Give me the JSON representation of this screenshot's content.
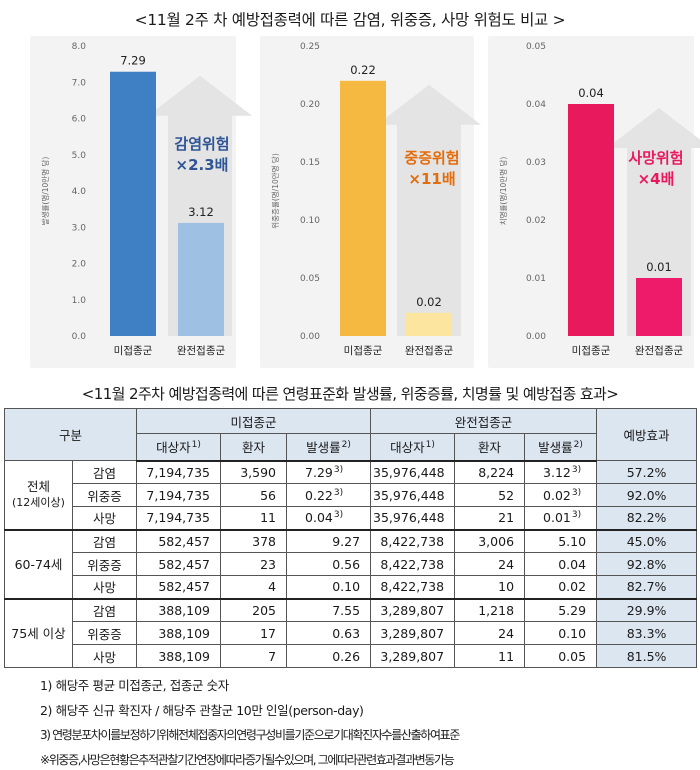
{
  "titles": {
    "chart_title": "<11월 2주 차 예방접종력에 따른 감염, 위중증, 사망 위험도 비교 >",
    "table_title": "<11월 2주차 예방접종력에 따른 연령표준화 발생률, 위중증률, 치명률 및 예방접종 효과>"
  },
  "chart_data": [
    {
      "type": "bar",
      "ylabel": "발생률(명/10만명 당)",
      "categories": [
        "미접종군",
        "완전접종군"
      ],
      "values": [
        7.29,
        3.12
      ],
      "value_labels": [
        "7.29",
        "3.12"
      ],
      "ylim": [
        0,
        8
      ],
      "ticks": [
        "0.0",
        "1.0",
        "2.0",
        "3.0",
        "4.0",
        "5.0",
        "6.0",
        "7.0",
        "8.0"
      ],
      "colors": [
        "#3f7fc3",
        "#9ec0e2"
      ],
      "risk_line1": "감염위험",
      "risk_line2": "×2.3배",
      "risk_color": "#2f5597"
    },
    {
      "type": "bar",
      "ylabel": "위중증률(명/10만명 당)",
      "categories": [
        "미접종군",
        "완전접종군"
      ],
      "values": [
        0.22,
        0.02
      ],
      "value_labels": [
        "0.22",
        "0.02"
      ],
      "ylim": [
        0,
        0.25
      ],
      "ticks": [
        "0.00",
        "0.05",
        "0.10",
        "0.15",
        "0.20",
        "0.25"
      ],
      "colors": [
        "#f5b942",
        "#fce59e"
      ],
      "risk_line1": "중증위험",
      "risk_line2": "×11배",
      "risk_color": "#e46c0a"
    },
    {
      "type": "bar",
      "ylabel": "치명률(명/10만명 당)",
      "categories": [
        "미접종군",
        "완전접종군"
      ],
      "values": [
        0.04,
        0.01
      ],
      "value_labels": [
        "0.04",
        "0.01"
      ],
      "ylim": [
        0,
        0.05
      ],
      "ticks": [
        "0.00",
        "0.01",
        "0.02",
        "0.03",
        "0.04",
        "0.05"
      ],
      "colors": [
        "#e8195d",
        "#ee1b6a"
      ],
      "risk_line1": "사망위험",
      "risk_line2": "×4배",
      "risk_color": "#e8195d"
    }
  ],
  "table": {
    "h_group": "구분",
    "h_unvax": "미접종군",
    "h_vax": "완전접종군",
    "h_target": "대상자",
    "h_target_sup": "1)",
    "h_patient": "환자",
    "h_rate": "발생률",
    "h_rate_sup": "2)",
    "h_effect": "예방효과",
    "groups": [
      {
        "label": "전체 (12세이상)",
        "rows": [
          {
            "type": "감염",
            "u_target": "7,194,735",
            "u_patient": "3,590",
            "u_rate": "7.29",
            "u_sup": "3)",
            "v_target": "35,976,448",
            "v_patient": "8,224",
            "v_rate": "3.12",
            "v_sup": "3)",
            "effect": "57.2%"
          },
          {
            "type": "위중증",
            "u_target": "7,194,735",
            "u_patient": "56",
            "u_rate": "0.22",
            "u_sup": "3)",
            "v_target": "35,976,448",
            "v_patient": "52",
            "v_rate": "0.02",
            "v_sup": "3)",
            "effect": "92.0%"
          },
          {
            "type": "사망",
            "u_target": "7,194,735",
            "u_patient": "11",
            "u_rate": "0.04",
            "u_sup": "3)",
            "v_target": "35,976,448",
            "v_patient": "21",
            "v_rate": "0.01",
            "v_sup": "3)",
            "effect": "82.2%"
          }
        ]
      },
      {
        "label": "60-74세",
        "rows": [
          {
            "type": "감염",
            "u_target": "582,457",
            "u_patient": "378",
            "u_rate": "9.27",
            "v_target": "8,422,738",
            "v_patient": "3,006",
            "v_rate": "5.10",
            "effect": "45.0%"
          },
          {
            "type": "위중증",
            "u_target": "582,457",
            "u_patient": "23",
            "u_rate": "0.56",
            "v_target": "8,422,738",
            "v_patient": "24",
            "v_rate": "0.04",
            "effect": "92.8%"
          },
          {
            "type": "사망",
            "u_target": "582,457",
            "u_patient": "4",
            "u_rate": "0.10",
            "v_target": "8,422,738",
            "v_patient": "10",
            "v_rate": "0.02",
            "effect": "82.7%"
          }
        ]
      },
      {
        "label": "75세 이상",
        "rows": [
          {
            "type": "감염",
            "u_target": "388,109",
            "u_patient": "205",
            "u_rate": "7.55",
            "v_target": "3,289,807",
            "v_patient": "1,218",
            "v_rate": "5.29",
            "effect": "29.9%"
          },
          {
            "type": "위중증",
            "u_target": "388,109",
            "u_patient": "17",
            "u_rate": "0.63",
            "v_target": "3,289,807",
            "v_patient": "24",
            "v_rate": "0.10",
            "effect": "83.3%"
          },
          {
            "type": "사망",
            "u_target": "388,109",
            "u_patient": "7",
            "u_rate": "0.26",
            "v_target": "3,289,807",
            "v_patient": "11",
            "v_rate": "0.05",
            "effect": "81.5%"
          }
        ]
      }
    ]
  },
  "notes": [
    "1) 해당주 평균 미접종군, 접종군 숫자",
    "2) 해당주 신규 확진자 / 해당주 관찰군 10만 인일(person-day)",
    "3) 연령분포차이를보정하기위해전체접종자의연령구성비를기준으로기대확진자수를산출하여표준",
    "※위중증,사망은현황은추적관찰기간연장에따라증가될수있으며, 그에따라관련효과결과변동가능"
  ]
}
